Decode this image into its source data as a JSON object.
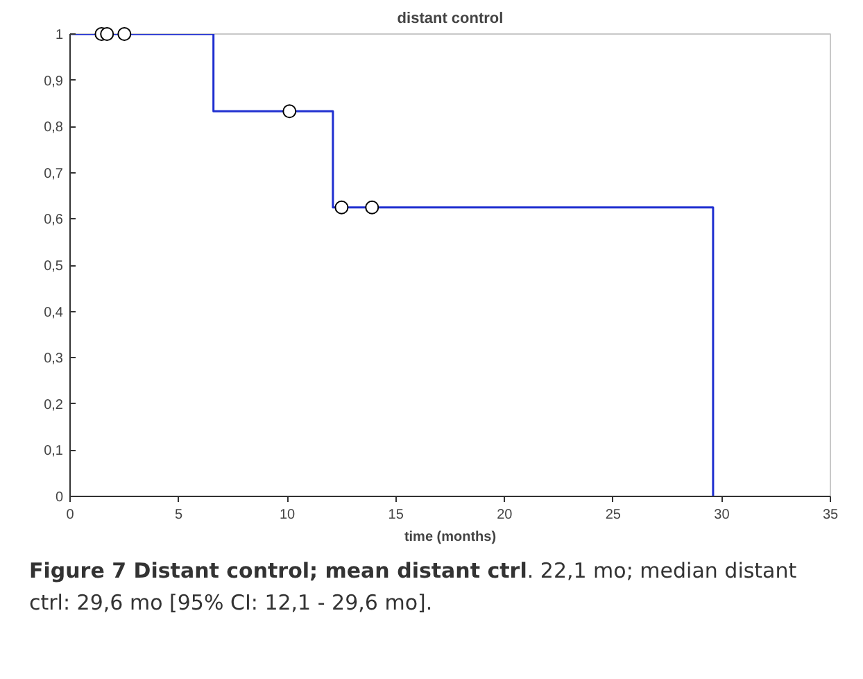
{
  "chart_data": {
    "type": "step",
    "title": "distant control",
    "xlabel": "time (months)",
    "series": [
      {
        "color": "#1f2fd0",
        "x": [
          0,
          6.6,
          12.1,
          29.6
        ],
        "values": [
          1,
          0.833,
          0.625,
          0
        ],
        "marker": "none"
      },
      {
        "type": "scatter",
        "color": "#ffffff",
        "x": [
          1.45,
          1.7,
          2.5,
          10.1,
          12.5,
          13.9
        ],
        "values": [
          1,
          1,
          1,
          0.833,
          0.625,
          0.625
        ],
        "marker": "circle"
      }
    ],
    "xlim": [
      0,
      35
    ],
    "xticks": [
      0,
      5,
      10,
      15,
      20,
      25,
      30,
      35
    ],
    "ylim": [
      0,
      1
    ],
    "yticks": [
      0,
      {
        "value": 0.1,
        "label": "0,1"
      },
      {
        "value": 0.2,
        "label": "0,2"
      },
      {
        "value": 0.3,
        "label": "0,3"
      },
      {
        "value": 0.4,
        "label": "0,4"
      },
      {
        "value": 0.5,
        "label": "0,5"
      },
      {
        "value": 0.6,
        "label": "0,6"
      },
      {
        "value": 0.7,
        "label": "0,7"
      },
      {
        "value": 0.8,
        "label": "0,8"
      },
      {
        "value": 0.9,
        "label": "0,9"
      },
      1
    ],
    "grid": false,
    "annotations": [
      "Figure 7 Distant control; mean distant ctrl",
      ". 22,1 mo; median distant ctrl: 29,6 mo [95% CI: 12,1 - 29,6 mo]."
    ]
  }
}
